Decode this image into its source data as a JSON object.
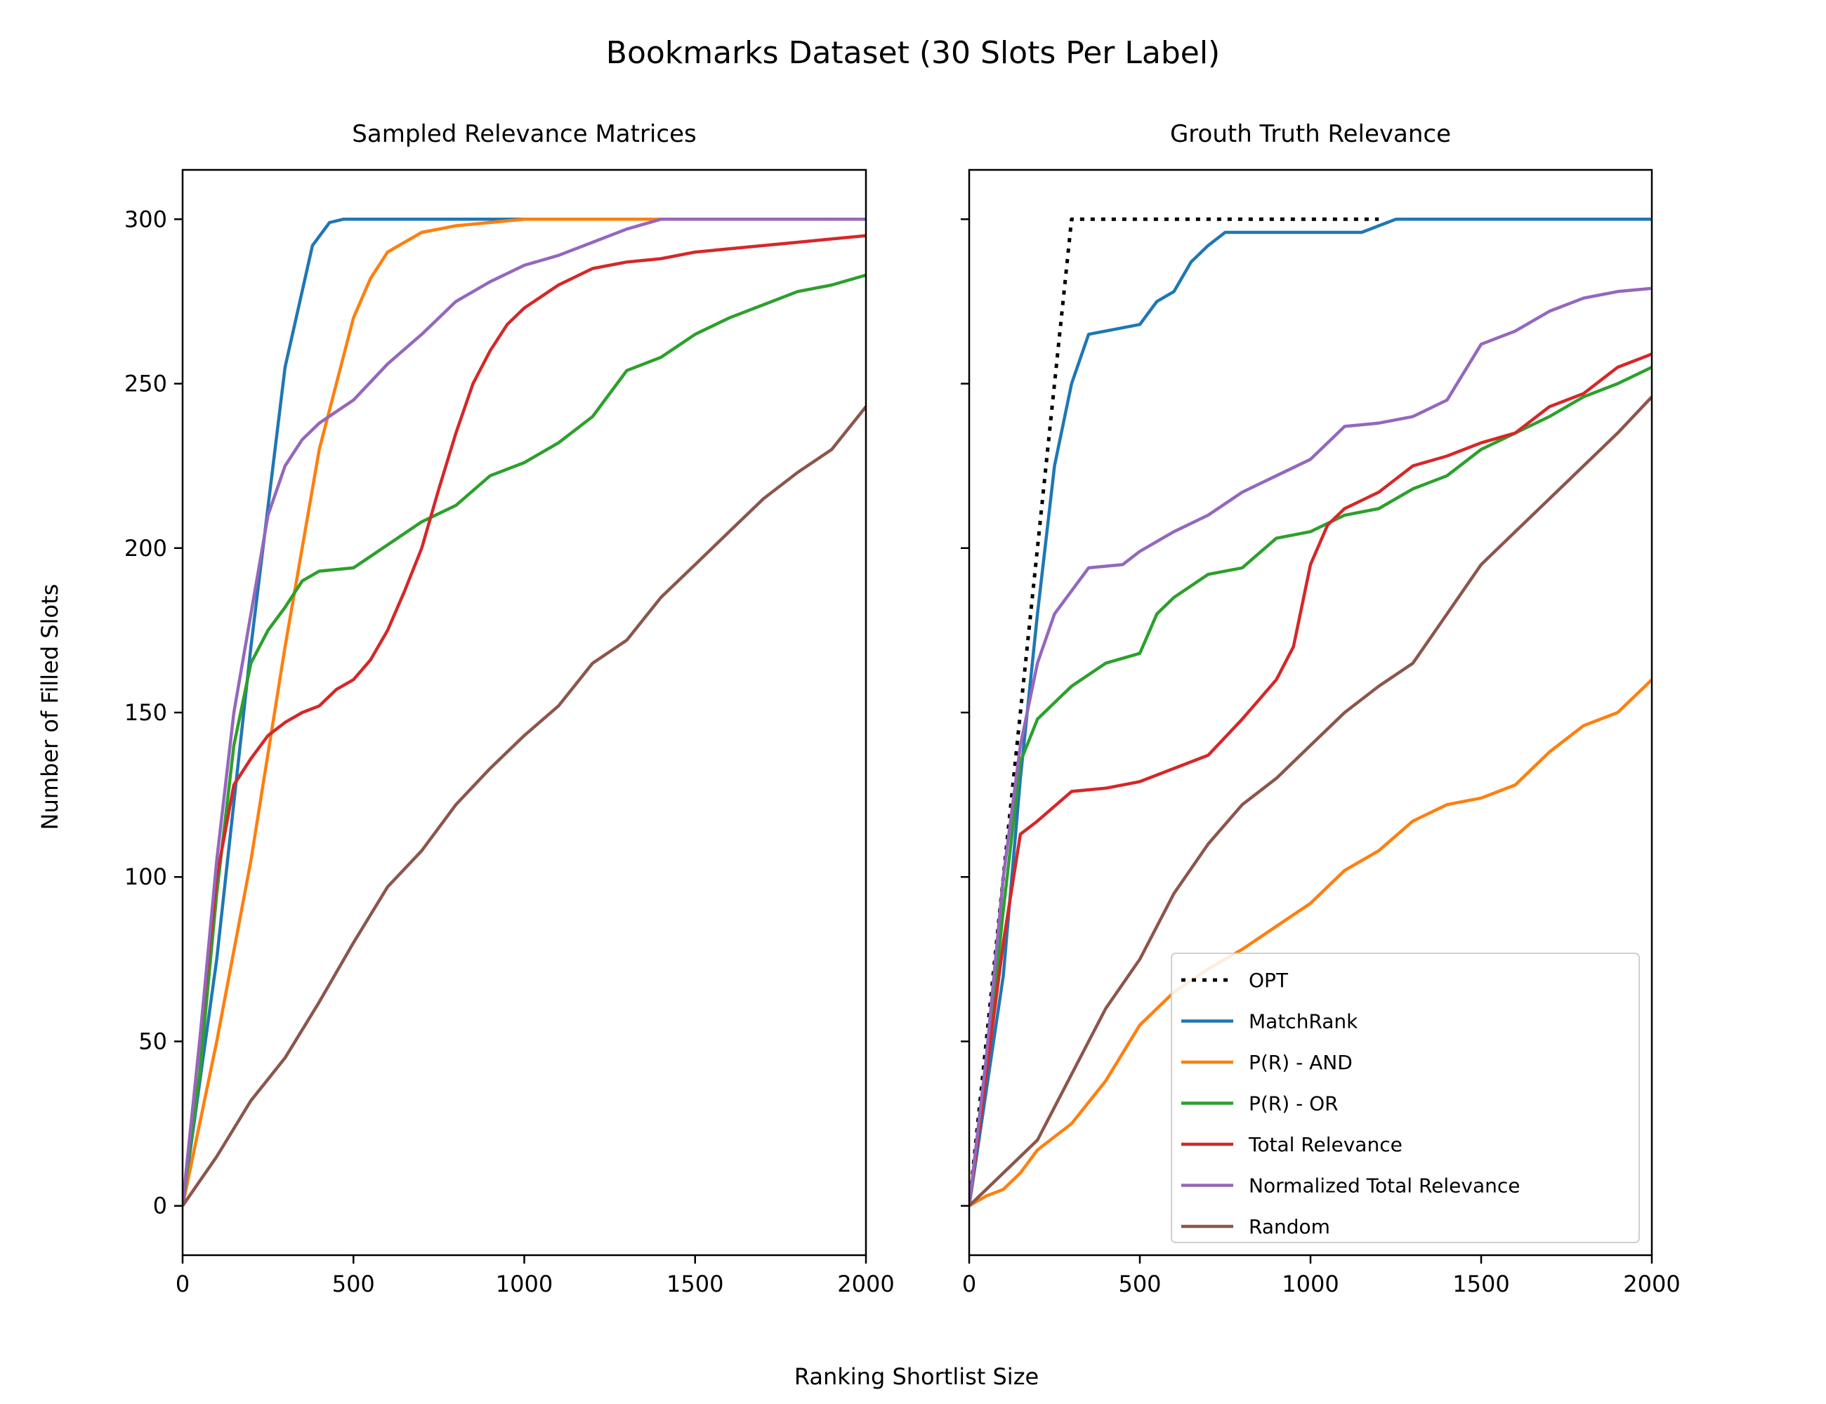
{
  "figure": {
    "title": "Bookmarks Dataset (30 Slots Per Label)",
    "xlabel": "Ranking Shortlist Size",
    "ylabel": "Number of Filled Slots"
  },
  "colors": {
    "OPT": "#000000",
    "MatchRank": "#1f77b4",
    "P(R) - AND": "#ff7f0e",
    "P(R) - OR": "#2ca02c",
    "Total Relevance": "#d62728",
    "Normalized Total Relevance": "#9467bd",
    "Random": "#8c564b"
  },
  "chart_data": [
    {
      "type": "line",
      "title": "Sampled Relevance Matrices",
      "xlim": [
        0,
        2000
      ],
      "ylim": [
        -15,
        315
      ],
      "xticks": [
        0,
        500,
        1000,
        1500,
        2000
      ],
      "yticks": [
        0,
        50,
        100,
        150,
        200,
        250,
        300
      ],
      "series": [
        {
          "name": "MatchRank",
          "points": [
            [
              0,
              0
            ],
            [
              100,
              75
            ],
            [
              200,
              170
            ],
            [
              300,
              255
            ],
            [
              380,
              292
            ],
            [
              430,
              299
            ],
            [
              470,
              300
            ],
            [
              2000,
              300
            ]
          ]
        },
        {
          "name": "P(R) - AND",
          "points": [
            [
              0,
              0
            ],
            [
              100,
              50
            ],
            [
              200,
              105
            ],
            [
              300,
              170
            ],
            [
              400,
              230
            ],
            [
              500,
              270
            ],
            [
              550,
              282
            ],
            [
              600,
              290
            ],
            [
              700,
              296
            ],
            [
              800,
              298
            ],
            [
              1000,
              300
            ],
            [
              2000,
              300
            ]
          ]
        },
        {
          "name": "P(R) - OR",
          "points": [
            [
              0,
              0
            ],
            [
              50,
              40
            ],
            [
              100,
              95
            ],
            [
              150,
              140
            ],
            [
              200,
              165
            ],
            [
              250,
              175
            ],
            [
              300,
              182
            ],
            [
              350,
              190
            ],
            [
              400,
              193
            ],
            [
              500,
              194
            ],
            [
              600,
              201
            ],
            [
              700,
              208
            ],
            [
              800,
              213
            ],
            [
              900,
              222
            ],
            [
              1000,
              226
            ],
            [
              1100,
              232
            ],
            [
              1200,
              240
            ],
            [
              1300,
              254
            ],
            [
              1400,
              258
            ],
            [
              1500,
              265
            ],
            [
              1600,
              270
            ],
            [
              1700,
              274
            ],
            [
              1800,
              278
            ],
            [
              1900,
              280
            ],
            [
              2000,
              283
            ]
          ]
        },
        {
          "name": "Total Relevance",
          "points": [
            [
              0,
              0
            ],
            [
              50,
              50
            ],
            [
              100,
              100
            ],
            [
              150,
              128
            ],
            [
              200,
              136
            ],
            [
              250,
              143
            ],
            [
              300,
              147
            ],
            [
              350,
              150
            ],
            [
              400,
              152
            ],
            [
              450,
              157
            ],
            [
              500,
              160
            ],
            [
              550,
              166
            ],
            [
              600,
              175
            ],
            [
              650,
              187
            ],
            [
              700,
              200
            ],
            [
              750,
              218
            ],
            [
              800,
              235
            ],
            [
              850,
              250
            ],
            [
              900,
              260
            ],
            [
              950,
              268
            ],
            [
              1000,
              273
            ],
            [
              1100,
              280
            ],
            [
              1200,
              285
            ],
            [
              1300,
              287
            ],
            [
              1400,
              288
            ],
            [
              1500,
              290
            ],
            [
              1600,
              291
            ],
            [
              1700,
              292
            ],
            [
              1800,
              293
            ],
            [
              1900,
              294
            ],
            [
              2000,
              295
            ]
          ]
        },
        {
          "name": "Normalized Total Relevance",
          "points": [
            [
              0,
              0
            ],
            [
              50,
              50
            ],
            [
              100,
              105
            ],
            [
              150,
              150
            ],
            [
              200,
              180
            ],
            [
              250,
              210
            ],
            [
              300,
              225
            ],
            [
              350,
              233
            ],
            [
              400,
              238
            ],
            [
              500,
              245
            ],
            [
              600,
              256
            ],
            [
              700,
              265
            ],
            [
              800,
              275
            ],
            [
              900,
              281
            ],
            [
              1000,
              286
            ],
            [
              1100,
              289
            ],
            [
              1200,
              293
            ],
            [
              1300,
              297
            ],
            [
              1400,
              300
            ],
            [
              2000,
              300
            ]
          ]
        },
        {
          "name": "Random",
          "points": [
            [
              0,
              0
            ],
            [
              100,
              15
            ],
            [
              200,
              32
            ],
            [
              300,
              45
            ],
            [
              400,
              62
            ],
            [
              500,
              80
            ],
            [
              600,
              97
            ],
            [
              700,
              108
            ],
            [
              800,
              122
            ],
            [
              900,
              133
            ],
            [
              1000,
              143
            ],
            [
              1100,
              152
            ],
            [
              1200,
              165
            ],
            [
              1300,
              172
            ],
            [
              1400,
              185
            ],
            [
              1500,
              195
            ],
            [
              1600,
              205
            ],
            [
              1700,
              215
            ],
            [
              1800,
              223
            ],
            [
              1900,
              230
            ],
            [
              2000,
              243
            ]
          ]
        }
      ]
    },
    {
      "type": "line",
      "title": "Grouth Truth Relevance",
      "xlim": [
        0,
        2000
      ],
      "ylim": [
        -15,
        315
      ],
      "xticks": [
        0,
        500,
        1000,
        1500,
        2000
      ],
      "yticks": [
        0,
        50,
        100,
        150,
        200,
        250,
        300
      ],
      "legend": "lower-right",
      "series": [
        {
          "name": "OPT",
          "points": [
            [
              0,
              0
            ],
            [
              300,
              300
            ],
            [
              1200,
              300
            ]
          ]
        },
        {
          "name": "MatchRank",
          "points": [
            [
              0,
              0
            ],
            [
              100,
              70
            ],
            [
              150,
              130
            ],
            [
              200,
              180
            ],
            [
              250,
              225
            ],
            [
              300,
              250
            ],
            [
              350,
              265
            ],
            [
              400,
              266
            ],
            [
              500,
              268
            ],
            [
              550,
              275
            ],
            [
              600,
              278
            ],
            [
              650,
              287
            ],
            [
              700,
              292
            ],
            [
              750,
              296
            ],
            [
              1000,
              296
            ],
            [
              1150,
              296
            ],
            [
              1200,
              298
            ],
            [
              1250,
              300
            ],
            [
              2000,
              300
            ]
          ]
        },
        {
          "name": "P(R) - AND",
          "points": [
            [
              0,
              0
            ],
            [
              50,
              3
            ],
            [
              100,
              5
            ],
            [
              150,
              10
            ],
            [
              200,
              17
            ],
            [
              300,
              25
            ],
            [
              400,
              38
            ],
            [
              500,
              55
            ],
            [
              600,
              65
            ],
            [
              700,
              72
            ],
            [
              800,
              78
            ],
            [
              900,
              85
            ],
            [
              1000,
              92
            ],
            [
              1100,
              102
            ],
            [
              1200,
              108
            ],
            [
              1300,
              117
            ],
            [
              1400,
              122
            ],
            [
              1500,
              124
            ],
            [
              1600,
              128
            ],
            [
              1700,
              138
            ],
            [
              1800,
              146
            ],
            [
              1900,
              150
            ],
            [
              2000,
              160
            ]
          ]
        },
        {
          "name": "P(R) - OR",
          "points": [
            [
              0,
              0
            ],
            [
              50,
              40
            ],
            [
              100,
              90
            ],
            [
              150,
              135
            ],
            [
              200,
              148
            ],
            [
              250,
              153
            ],
            [
              300,
              158
            ],
            [
              400,
              165
            ],
            [
              500,
              168
            ],
            [
              550,
              180
            ],
            [
              600,
              185
            ],
            [
              700,
              192
            ],
            [
              800,
              194
            ],
            [
              900,
              203
            ],
            [
              1000,
              205
            ],
            [
              1100,
              210
            ],
            [
              1200,
              212
            ],
            [
              1300,
              218
            ],
            [
              1400,
              222
            ],
            [
              1500,
              230
            ],
            [
              1600,
              235
            ],
            [
              1700,
              240
            ],
            [
              1800,
              246
            ],
            [
              1900,
              250
            ],
            [
              2000,
              255
            ]
          ]
        },
        {
          "name": "Total Relevance",
          "points": [
            [
              0,
              0
            ],
            [
              50,
              40
            ],
            [
              100,
              80
            ],
            [
              150,
              113
            ],
            [
              200,
              117
            ],
            [
              300,
              126
            ],
            [
              400,
              127
            ],
            [
              500,
              129
            ],
            [
              600,
              133
            ],
            [
              700,
              137
            ],
            [
              800,
              148
            ],
            [
              900,
              160
            ],
            [
              950,
              170
            ],
            [
              1000,
              195
            ],
            [
              1050,
              207
            ],
            [
              1100,
              212
            ],
            [
              1200,
              217
            ],
            [
              1300,
              225
            ],
            [
              1400,
              228
            ],
            [
              1500,
              232
            ],
            [
              1600,
              235
            ],
            [
              1700,
              243
            ],
            [
              1800,
              247
            ],
            [
              1900,
              255
            ],
            [
              2000,
              259
            ]
          ]
        },
        {
          "name": "Normalized Total Relevance",
          "points": [
            [
              0,
              0
            ],
            [
              50,
              45
            ],
            [
              100,
              100
            ],
            [
              150,
              140
            ],
            [
              200,
              165
            ],
            [
              250,
              180
            ],
            [
              300,
              187
            ],
            [
              350,
              194
            ],
            [
              450,
              195
            ],
            [
              500,
              199
            ],
            [
              600,
              205
            ],
            [
              700,
              210
            ],
            [
              800,
              217
            ],
            [
              900,
              222
            ],
            [
              1000,
              227
            ],
            [
              1100,
              237
            ],
            [
              1200,
              238
            ],
            [
              1300,
              240
            ],
            [
              1400,
              245
            ],
            [
              1500,
              262
            ],
            [
              1600,
              266
            ],
            [
              1700,
              272
            ],
            [
              1800,
              276
            ],
            [
              1900,
              278
            ],
            [
              2000,
              279
            ]
          ]
        },
        {
          "name": "Random",
          "points": [
            [
              0,
              0
            ],
            [
              100,
              10
            ],
            [
              200,
              20
            ],
            [
              300,
              40
            ],
            [
              400,
              60
            ],
            [
              500,
              75
            ],
            [
              600,
              95
            ],
            [
              700,
              110
            ],
            [
              800,
              122
            ],
            [
              900,
              130
            ],
            [
              1000,
              140
            ],
            [
              1100,
              150
            ],
            [
              1200,
              158
            ],
            [
              1300,
              165
            ],
            [
              1400,
              180
            ],
            [
              1500,
              195
            ],
            [
              1600,
              205
            ],
            [
              1700,
              215
            ],
            [
              1800,
              225
            ],
            [
              1900,
              235
            ],
            [
              2000,
              246
            ]
          ]
        }
      ]
    }
  ]
}
